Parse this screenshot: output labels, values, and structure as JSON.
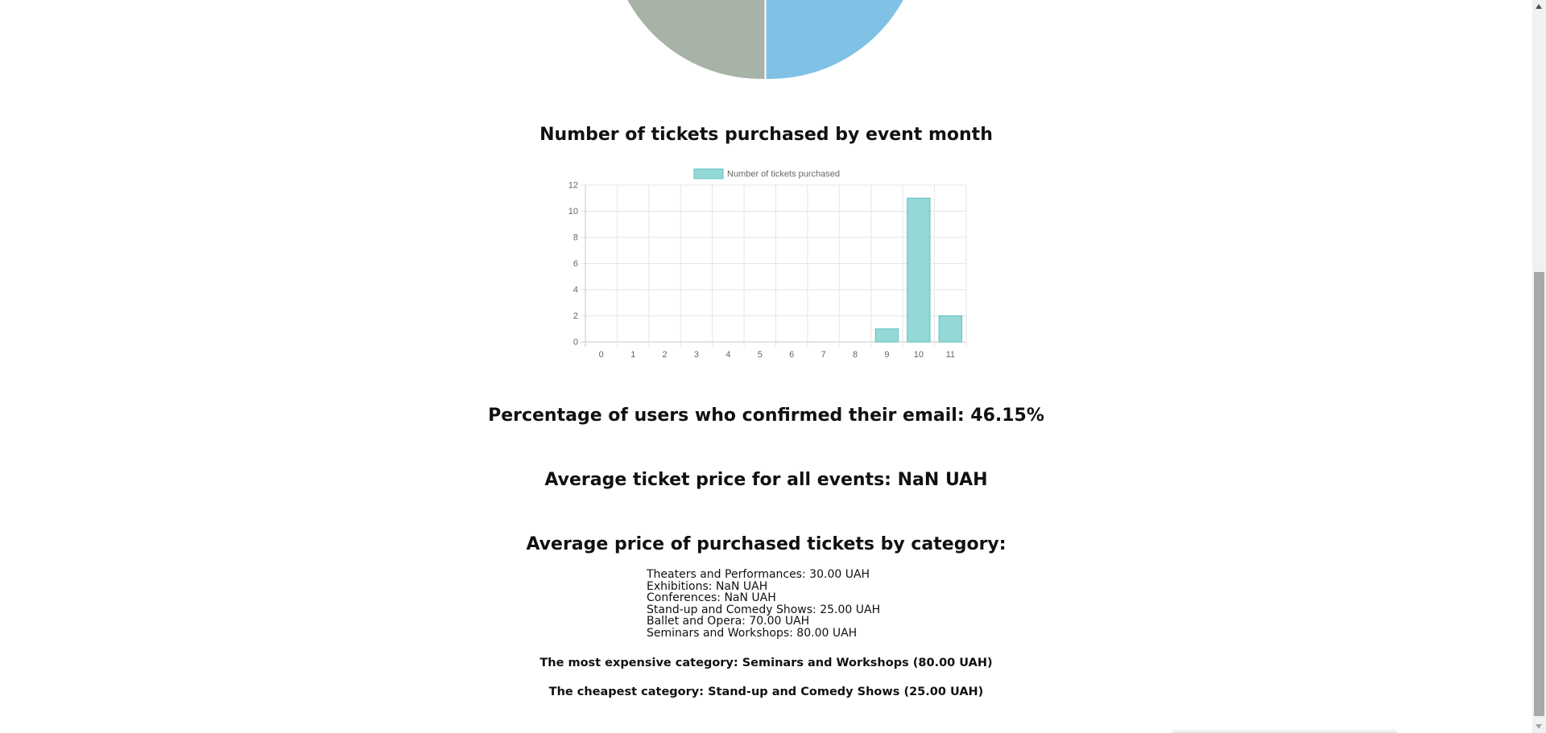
{
  "pie_partial": {
    "slices_visible": [
      {
        "color": "#a8b3a7"
      },
      {
        "color": "#7fc2e6"
      }
    ]
  },
  "tickets_section": {
    "heading": "Number of tickets purchased by event month"
  },
  "chart_data": {
    "type": "bar",
    "title": "",
    "xlabel": "",
    "ylabel": "",
    "categories": [
      "0",
      "1",
      "2",
      "3",
      "4",
      "5",
      "6",
      "7",
      "8",
      "9",
      "10",
      "11"
    ],
    "series": [
      {
        "name": "Number of tickets purchased",
        "values": [
          0,
          0,
          0,
          0,
          0,
          0,
          0,
          0,
          0,
          1,
          11,
          2
        ],
        "fill": "#94d8d8",
        "stroke": "#5fc0c0"
      }
    ],
    "y_ticks": [
      "0",
      "2",
      "4",
      "6",
      "8",
      "10",
      "12"
    ],
    "ylim": [
      0,
      12
    ],
    "grid": true,
    "legend_position": "top"
  },
  "email_confirm": {
    "heading": "Percentage of users who confirmed their email: 46.15%"
  },
  "avg_price": {
    "heading": "Average ticket price for all events: NaN UAH"
  },
  "category_prices": {
    "heading": "Average price of purchased tickets by category:",
    "items": [
      "Theaters and Performances: 30.00 UAH",
      "Exhibitions: NaN UAH",
      "Conferences: NaN UAH",
      "Stand-up and Comedy Shows: 25.00 UAH",
      "Ballet and Opera: 70.00 UAH",
      "Seminars and Workshops: 80.00 UAH"
    ],
    "most_expensive": "The most expensive category: Seminars and Workshops (80.00 UAH)",
    "cheapest": "The cheapest category: Stand-up and Comedy Shows (25.00 UAH)"
  }
}
